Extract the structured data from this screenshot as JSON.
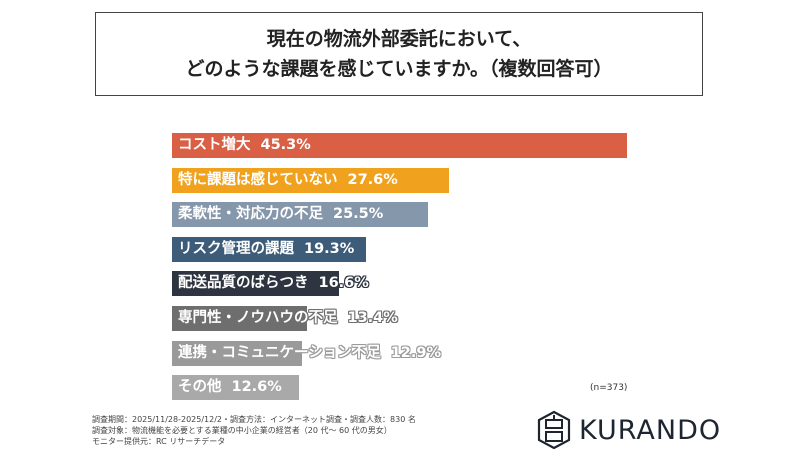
{
  "title": {
    "line1": "現在の物流外部委託において、",
    "line2": "どのような課題を感じていますか。（複数回答可）"
  },
  "chart_data": {
    "type": "bar",
    "orientation": "horizontal",
    "categories": [
      "コスト増大",
      "特に課題は感じていない",
      "柔軟性・対応力の不足",
      "リスク管理の課題",
      "配送品質のばらつき",
      "専門性・ノウハウの不足",
      "連携・コミュニケーション不足",
      "その他"
    ],
    "values": [
      45.3,
      27.6,
      25.5,
      19.3,
      16.6,
      13.4,
      12.9,
      12.6
    ],
    "value_labels": [
      "45.3%",
      "27.6%",
      "25.5%",
      "19.3%",
      "16.6%",
      "13.4%",
      "12.9%",
      "12.6%"
    ],
    "colors": [
      "#d95f45",
      "#f0a21e",
      "#8597ab",
      "#3d5c7a",
      "#2e3440",
      "#6e6e6e",
      "#9a9a9a",
      "#a9a9a9"
    ],
    "unit": "%",
    "xlim": [
      0,
      50
    ]
  },
  "sample": "(n=373)",
  "footer": [
    "調査期間：2025/11/28-2025/12/2・調査方法：インターネット調査・調査人数：830 名",
    "調査対象：物流機能を必要とする業種の中小企業の経営者（20 代～ 60 代の男女）",
    "モニター提供元：RC リサーチデータ"
  ],
  "logo": "KURANDO"
}
